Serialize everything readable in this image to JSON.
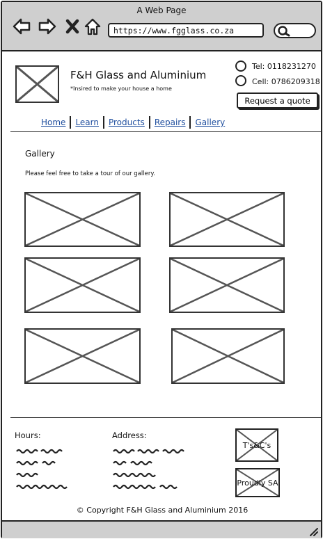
{
  "browser": {
    "title": "A Web Page",
    "url": "https://www.fgglass.co.za",
    "icons": [
      "back-arrow-icon",
      "forward-arrow-icon",
      "close-x-icon",
      "home-icon",
      "search-icon"
    ]
  },
  "header": {
    "site_name": "F&H Glass and Aluminium",
    "tagline": "*Insired to make your house a home",
    "tel": "Tel: 0118231270",
    "cell": "Cell: 0786209318",
    "quote_button": "Request a quote"
  },
  "nav": [
    {
      "label": "Home"
    },
    {
      "label": "Learn"
    },
    {
      "label": "Products"
    },
    {
      "label": "Repairs"
    },
    {
      "label": "Gallery"
    }
  ],
  "main": {
    "title": "Gallery",
    "intro": "Please feel free to take a tour of our gallery.",
    "gallery_count": 6
  },
  "footer": {
    "hours_label": "Hours:",
    "address_label": "Address:",
    "terms_badge": "T's&C's",
    "proudly_badge": "Proudly SA",
    "copyright": "© Copyright F&H Glass and Aluminium 2016"
  },
  "colors": {
    "chrome": "#cfcfcf",
    "link": "#1f4e9e",
    "stroke": "#222222"
  }
}
